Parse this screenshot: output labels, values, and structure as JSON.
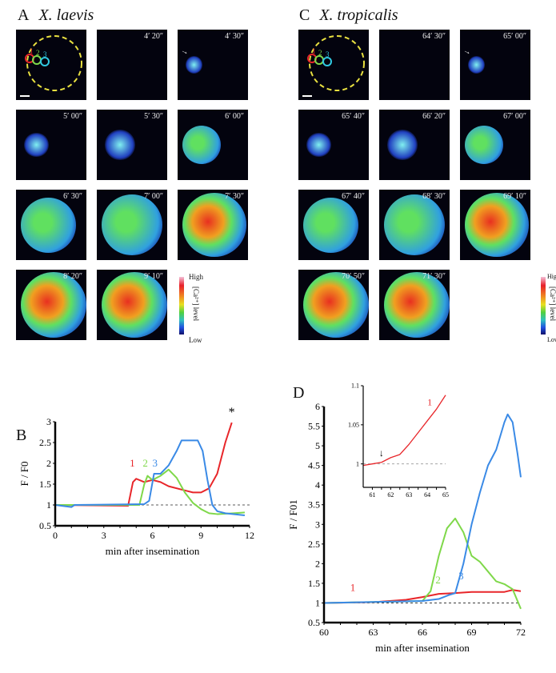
{
  "panelA": {
    "letter": "A",
    "species": "X. laevis",
    "roi_labels": [
      "1",
      "2",
      "3"
    ],
    "timestamps": [
      "4′ 20″",
      "4′ 30″",
      "5′ 00″",
      "5′ 30″",
      "6′ 00″",
      "6′ 30″",
      "7′ 00″",
      "7′ 30″",
      "8′ 20″",
      "9′ 10″"
    ]
  },
  "panelC": {
    "letter": "C",
    "species": "X. tropicalis",
    "roi_labels": [
      "1",
      "2",
      "3"
    ],
    "timestamps": [
      "64′ 30″",
      "65′ 00″",
      "65′ 40″",
      "66′ 20″",
      "67′ 00″",
      "67′ 40″",
      "68′ 30″",
      "69′ 10″",
      "70′ 50″",
      "71′ 30″"
    ]
  },
  "colorbar": {
    "high": "High",
    "low": "Low",
    "label": "[Ca²⁺] level"
  },
  "colors": {
    "r1": "#e8262a",
    "r2": "#7fd84a",
    "r3": "#3a8ae6"
  },
  "chart_data": [
    {
      "panel": "B",
      "type": "line",
      "xlabel": "min after insemination",
      "ylabel": "F / F0",
      "xlim": [
        0,
        12
      ],
      "ylim": [
        0.5,
        3
      ],
      "xticks": [
        "0",
        "3",
        "6",
        "9",
        "12"
      ],
      "yticks": [
        "0.5",
        "1",
        "1.5",
        "2",
        "2.5",
        "3"
      ],
      "reference_line": 1,
      "annotation": "*",
      "series": [
        {
          "name": "1",
          "x": [
            0,
            4.5,
            4.8,
            5,
            5.5,
            6,
            6.5,
            7,
            8,
            8.5,
            9,
            9.5,
            10,
            10.5,
            10.9
          ],
          "y": [
            1,
            0.98,
            1.55,
            1.63,
            1.55,
            1.6,
            1.55,
            1.45,
            1.35,
            1.3,
            1.3,
            1.4,
            1.75,
            2.5,
            2.98
          ]
        },
        {
          "name": "2",
          "x": [
            0,
            5.2,
            5.5,
            5.7,
            6,
            6.5,
            7,
            7.5,
            8,
            8.5,
            9,
            9.5,
            10,
            11,
            11.7
          ],
          "y": [
            1,
            1,
            1.5,
            1.7,
            1.6,
            1.7,
            1.85,
            1.65,
            1.3,
            1.05,
            0.9,
            0.8,
            0.78,
            0.8,
            0.82
          ]
        },
        {
          "name": "3",
          "x": [
            0,
            1,
            1.2,
            5.5,
            5.8,
            6.1,
            6.5,
            7,
            7.5,
            7.8,
            8.8,
            9.1,
            9.4,
            9.7,
            10,
            10.5,
            11.7
          ],
          "y": [
            1,
            0.95,
            1,
            1.02,
            1.1,
            1.75,
            1.75,
            1.95,
            2.3,
            2.55,
            2.55,
            2.3,
            1.6,
            1,
            0.85,
            0.8,
            0.75
          ]
        }
      ]
    },
    {
      "panel": "D",
      "type": "line",
      "xlabel": "min after insemination",
      "ylabel": "F / F01",
      "xlim": [
        60,
        72
      ],
      "ylim": [
        0.5,
        6
      ],
      "xticks": [
        "60",
        "63",
        "66",
        "69",
        "72"
      ],
      "yticks": [
        "0.5",
        "1",
        "1.5",
        "2",
        "2.5",
        "3",
        "3.5",
        "4",
        "4.5",
        "5",
        "5.5",
        "6"
      ],
      "reference_line": 1,
      "series": [
        {
          "name": "1",
          "x": [
            60,
            63,
            65,
            66,
            67,
            68,
            69,
            71,
            71.5,
            72
          ],
          "y": [
            1,
            1.02,
            1.08,
            1.15,
            1.23,
            1.25,
            1.28,
            1.28,
            1.33,
            1.3
          ]
        },
        {
          "name": "2",
          "x": [
            60,
            66,
            66.5,
            67,
            67.5,
            68,
            68.5,
            69,
            69.5,
            70,
            70.5,
            71,
            71.5,
            72
          ],
          "y": [
            1,
            1.05,
            1.3,
            2.2,
            2.9,
            3.15,
            2.8,
            2.2,
            2.05,
            1.8,
            1.55,
            1.48,
            1.35,
            0.85
          ]
        },
        {
          "name": "3",
          "x": [
            60,
            66,
            67,
            67.6,
            68,
            68.5,
            69,
            69.5,
            70,
            70.5,
            71,
            71.2,
            71.5,
            71.8,
            72
          ],
          "y": [
            1,
            1.05,
            1.1,
            1.2,
            1.25,
            2,
            3,
            3.8,
            4.5,
            4.9,
            5.6,
            5.8,
            5.6,
            4.8,
            4.2
          ]
        }
      ]
    },
    {
      "panel": "D-inset",
      "type": "line",
      "xlim": [
        60.5,
        65
      ],
      "ylim": [
        0.97,
        1.1
      ],
      "xticks": [
        "61",
        "62",
        "63",
        "64",
        "65"
      ],
      "yticks": [
        "1",
        "1.05",
        "1.1"
      ],
      "reference_line": 1,
      "arrow_at": 61.5,
      "arrow_glyph": "↓",
      "series": [
        {
          "name": "1",
          "x": [
            60.5,
            61,
            61.5,
            62,
            62.5,
            63,
            63.5,
            64,
            64.5,
            65
          ],
          "y": [
            0.998,
            1,
            1.002,
            1.008,
            1.012,
            1.025,
            1.04,
            1.055,
            1.07,
            1.088
          ]
        }
      ]
    }
  ]
}
